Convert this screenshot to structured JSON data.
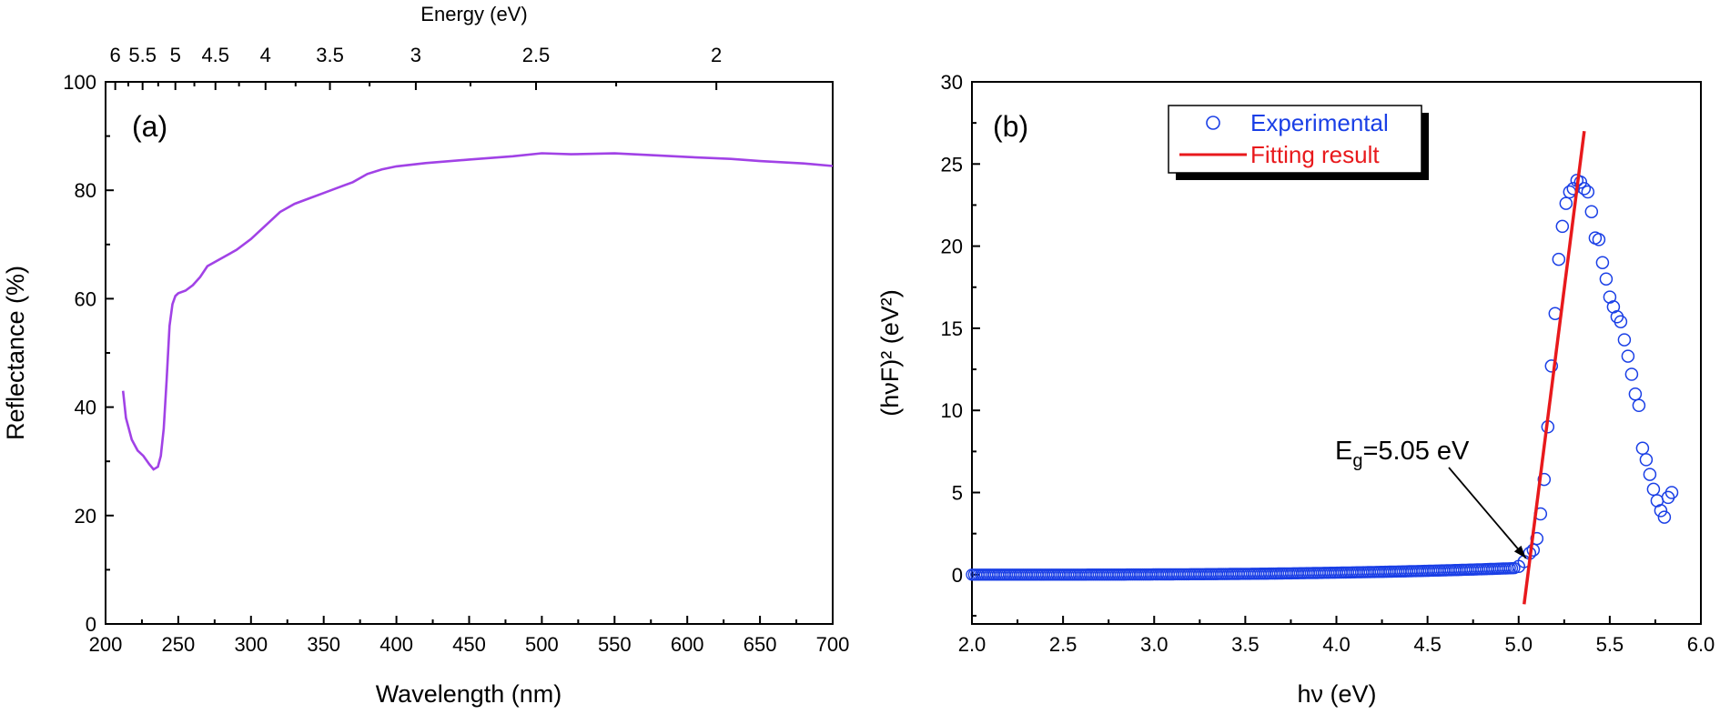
{
  "chart_data": [
    {
      "type": "line",
      "panel_label": "(a)",
      "xlabel": "Wavelength (nm)",
      "ylabel": "Reflectance (%)",
      "top_axis_label": "Energy (eV)",
      "xlim": [
        200,
        700
      ],
      "ylim": [
        0,
        100
      ],
      "x_ticks": [
        "200",
        "250",
        "300",
        "350",
        "400",
        "450",
        "500",
        "550",
        "600",
        "650",
        "700"
      ],
      "y_ticks": [
        "0",
        "20",
        "40",
        "60",
        "80",
        "100"
      ],
      "top_ticks": [
        {
          "label": "6",
          "energy": 6
        },
        {
          "label": "5.5",
          "energy": 5.5
        },
        {
          "label": "5",
          "energy": 5
        },
        {
          "label": "4.5",
          "energy": 4.5
        },
        {
          "label": "4",
          "energy": 4
        },
        {
          "label": "3.5",
          "energy": 3.5
        },
        {
          "label": "3",
          "energy": 3
        },
        {
          "label": "2.5",
          "energy": 2.5
        },
        {
          "label": "2",
          "energy": 2
        }
      ],
      "line_color": "#a142e6",
      "series": [
        {
          "x": [
            212,
            214,
            218,
            222,
            226,
            230,
            233,
            236,
            238,
            240,
            242,
            244,
            246,
            248,
            250,
            255,
            260,
            265,
            270,
            280,
            290,
            300,
            310,
            320,
            330,
            340,
            350,
            360,
            370,
            380,
            390,
            400,
            420,
            450,
            480,
            500,
            520,
            550,
            580,
            600,
            630,
            650,
            680,
            700
          ],
          "y": [
            43,
            38,
            34,
            32,
            31,
            29.5,
            28.5,
            29,
            31,
            36,
            45,
            55,
            59,
            60.5,
            61,
            61.5,
            62.5,
            64,
            66,
            67.5,
            69,
            71,
            73.5,
            76,
            77.5,
            78.5,
            79.5,
            80.5,
            81.5,
            83,
            84,
            84.5,
            85,
            85.5,
            86,
            86.5,
            86.3,
            86.5,
            86.2,
            86,
            85.8,
            85.5,
            85.2,
            84.8
          ]
        }
      ]
    },
    {
      "type": "scatter",
      "panel_label": "(b)",
      "xlabel": "hν (eV)",
      "ylabel": "(hνF)² (eV²)",
      "xlim": [
        2.0,
        6.0
      ],
      "ylim": [
        -3,
        30
      ],
      "x_ticks": [
        "2.0",
        "2.5",
        "3.0",
        "3.5",
        "4.0",
        "4.5",
        "5.0",
        "5.5",
        "6.0"
      ],
      "y_ticks": [
        "0",
        "5",
        "10",
        "15",
        "20",
        "25",
        "30"
      ],
      "annotation": {
        "text": "E",
        "sub": "g",
        "rest": "=5.05 eV",
        "arrow_to": [
          5.04,
          1.0
        ]
      },
      "series": [
        {
          "name": "Experimental",
          "color": "#1a3fe6",
          "x": [
            5.0,
            5.03,
            5.06,
            5.08,
            5.1,
            5.12,
            5.14,
            5.16,
            5.18,
            5.2,
            5.22,
            5.24,
            5.26,
            5.28,
            5.3,
            5.32,
            5.34,
            5.36,
            5.38,
            5.4,
            5.42,
            5.44,
            5.46,
            5.48,
            5.5,
            5.52,
            5.54,
            5.56,
            5.58,
            5.6,
            5.62,
            5.64,
            5.66,
            5.68,
            5.7,
            5.72,
            5.74,
            5.76,
            5.78,
            5.8,
            5.82,
            5.84
          ],
          "y": [
            0.5,
            0.8,
            1.3,
            1.5,
            2.2,
            3.7,
            5.8,
            9.0,
            12.7,
            15.9,
            19.2,
            21.2,
            22.6,
            23.3,
            23.5,
            24.0,
            23.9,
            23.5,
            23.3,
            22.1,
            20.5,
            20.4,
            19.0,
            18.0,
            16.9,
            16.3,
            15.7,
            15.4,
            14.3,
            13.3,
            12.2,
            11.0,
            10.3,
            7.7,
            7.0,
            6.1,
            5.2,
            4.5,
            3.9,
            3.5,
            4.7,
            5.0
          ],
          "baseline": {
            "x_start": 2.0,
            "x_end": 4.98,
            "y_start": 0.0,
            "y_end": 0.4,
            "step": 0.012
          }
        },
        {
          "name": "Fitting result",
          "color": "#e8191c",
          "x": [
            5.03,
            5.36
          ],
          "y": [
            -1.8,
            27.0
          ]
        }
      ]
    }
  ]
}
